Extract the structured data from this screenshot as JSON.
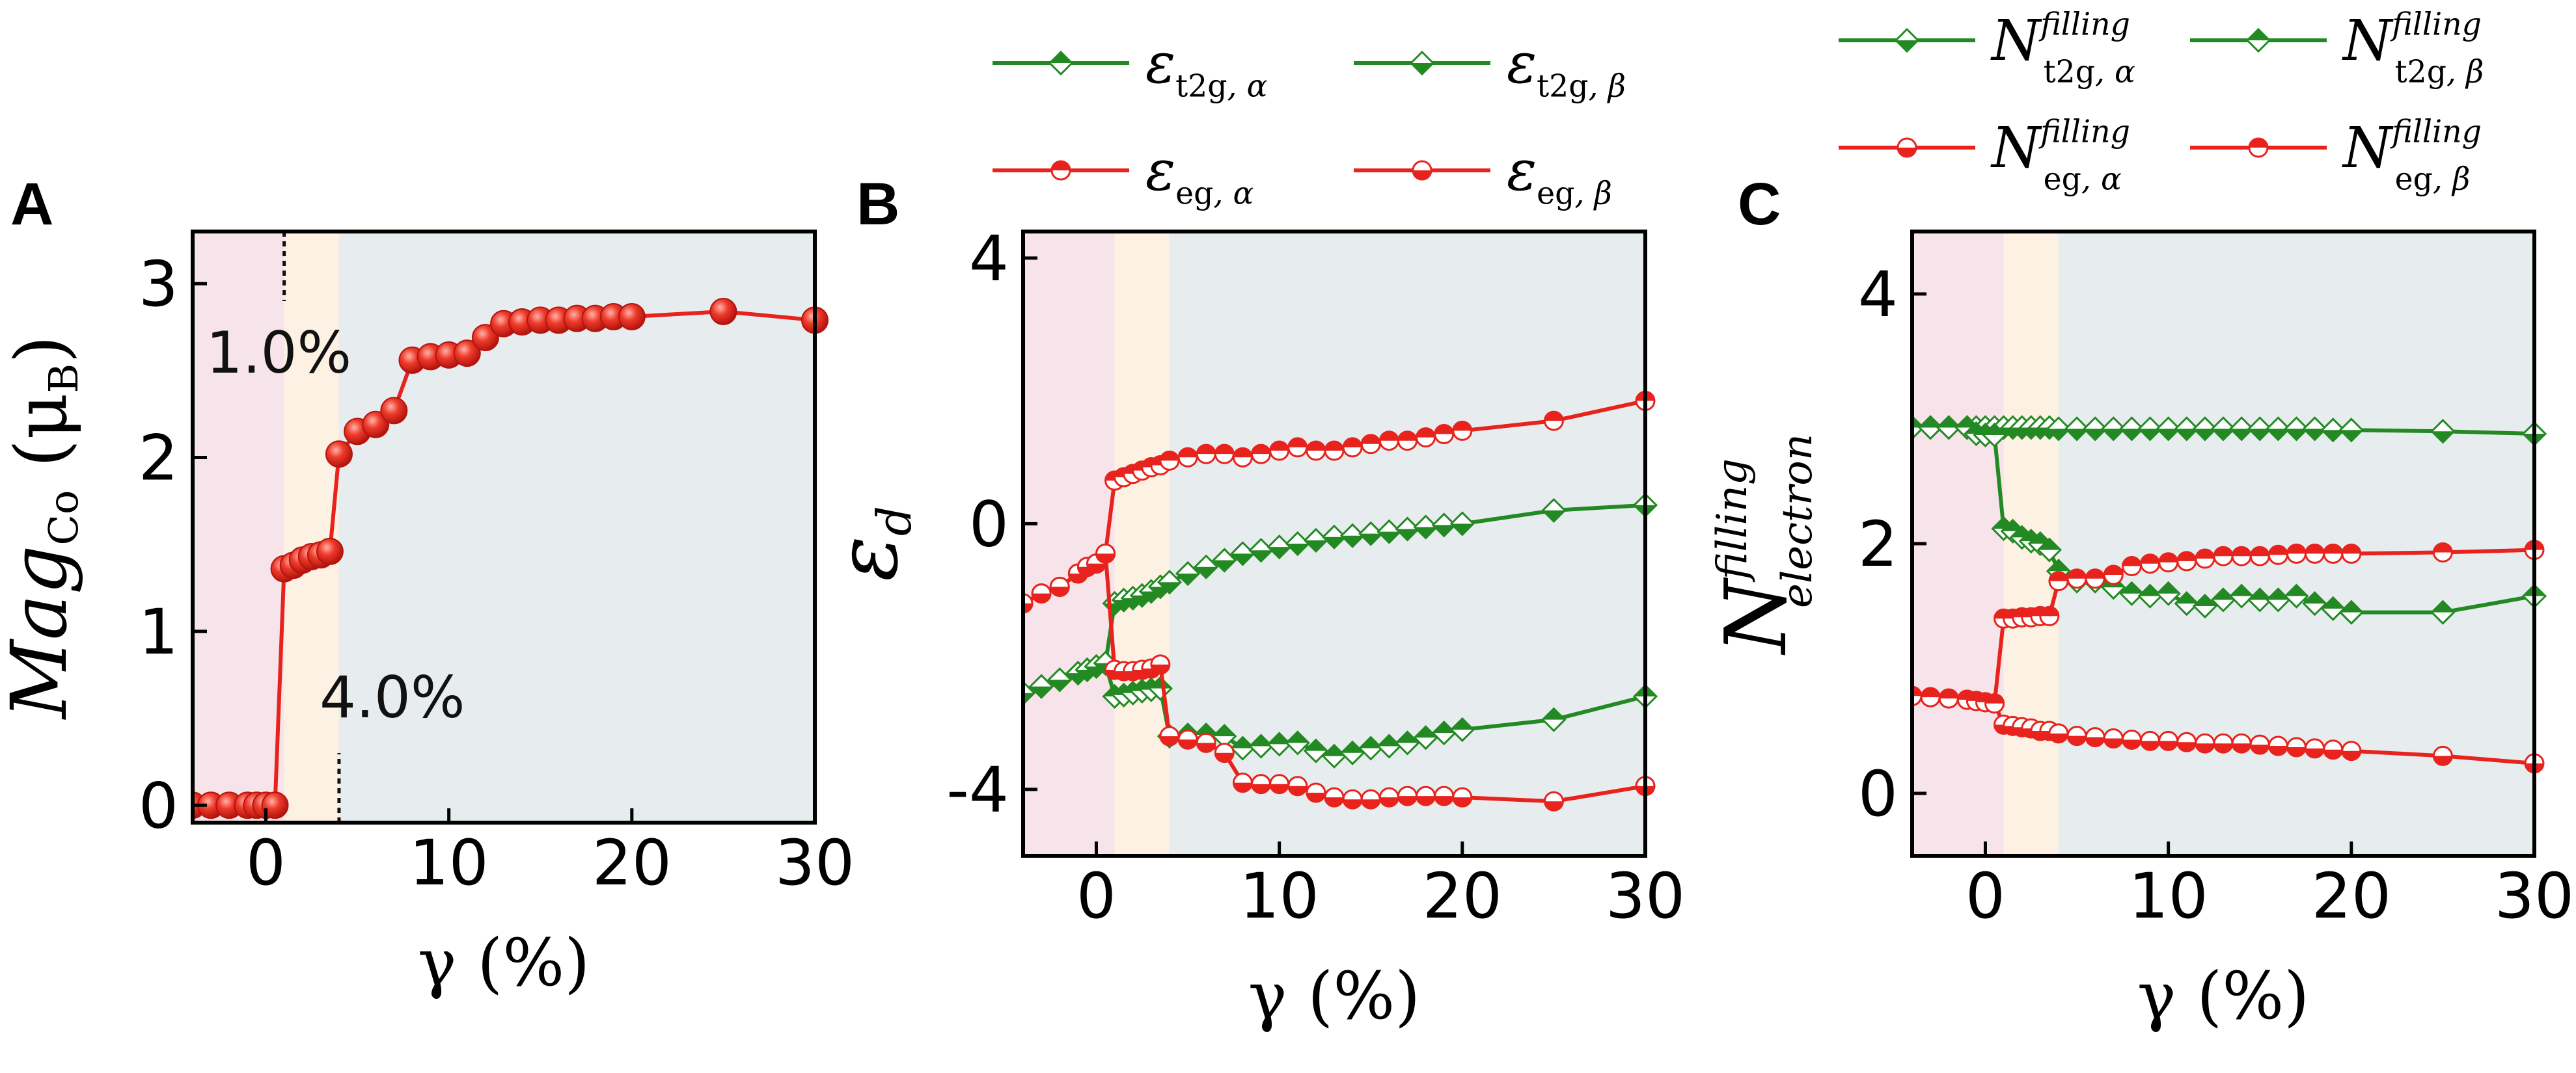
{
  "chart_data": [
    {
      "panel": "A",
      "type": "line",
      "xlabel": "γ (%)",
      "ylabel": {
        "main": "Mag",
        "sub": "Co",
        "unit_open": "(μ",
        "unit_sub": "B",
        "unit_close": ")"
      },
      "xlim": [
        -4,
        30
      ],
      "ylim": [
        -0.1,
        3.3
      ],
      "xticks": [
        0,
        10,
        20,
        30
      ],
      "yticks": [
        0,
        1,
        2,
        3
      ],
      "regions": [
        {
          "from": -4,
          "to": 1,
          "color": "#f6e4ea"
        },
        {
          "from": 1,
          "to": 4,
          "color": "#fcf1e2"
        },
        {
          "from": 4,
          "to": 30,
          "color": "#e7edef"
        }
      ],
      "annotations": [
        {
          "text": "1.0%",
          "x": 1.0,
          "y_from": 3.3,
          "y_to": 2.9
        },
        {
          "text": "4.0%",
          "x": 4.0,
          "y_from": -0.1,
          "y_to": 0.3
        }
      ],
      "series": [
        {
          "name": "Mag Co",
          "color": "#e8231d",
          "marker": "sphere",
          "x": [
            -4,
            -3,
            -2,
            -1,
            -0.5,
            0,
            0.5,
            1,
            1.5,
            2,
            2.5,
            3,
            3.5,
            4,
            5,
            6,
            7,
            8,
            9,
            10,
            11,
            12,
            13,
            14,
            15,
            16,
            17,
            18,
            19,
            20,
            25,
            30
          ],
          "y": [
            0,
            0,
            0,
            0,
            0,
            0,
            0,
            1.36,
            1.38,
            1.41,
            1.43,
            1.44,
            1.46,
            2.02,
            2.15,
            2.19,
            2.27,
            2.56,
            2.58,
            2.59,
            2.6,
            2.69,
            2.77,
            2.78,
            2.79,
            2.79,
            2.8,
            2.8,
            2.81,
            2.81,
            2.84,
            2.79
          ]
        }
      ]
    },
    {
      "panel": "B",
      "type": "line",
      "xlabel": "γ (%)",
      "ylabel": {
        "main": "ε",
        "sub": "d"
      },
      "xlim": [
        -4,
        30
      ],
      "ylim": [
        -5,
        4.4
      ],
      "xticks": [
        0,
        10,
        20,
        30
      ],
      "yticks": [
        -4,
        0,
        4
      ],
      "ytick_labels": [
        "-4",
        "0",
        "4"
      ],
      "regions": [
        {
          "from": -4,
          "to": 1,
          "color": "#f6e4ea"
        },
        {
          "from": 1,
          "to": 4,
          "color": "#fcf1e2"
        },
        {
          "from": 4,
          "to": 30,
          "color": "#e7edef"
        }
      ],
      "series": [
        {
          "name": "ε t2g, α",
          "color": "#238a23",
          "marker": "diamond-top",
          "x": [
            -4,
            -3,
            -2,
            -1,
            -0.5,
            0,
            0.5,
            1,
            1.5,
            2,
            2.5,
            3,
            3.5,
            4,
            5,
            6,
            7,
            8,
            9,
            10,
            11,
            12,
            13,
            14,
            15,
            16,
            17,
            18,
            19,
            20,
            25,
            30
          ],
          "y": [
            -2.55,
            -2.45,
            -2.35,
            -2.25,
            -2.2,
            -2.15,
            -2.1,
            -2.6,
            -2.58,
            -2.55,
            -2.52,
            -2.5,
            -2.48,
            -3.2,
            -3.18,
            -3.18,
            -3.2,
            -3.38,
            -3.35,
            -3.32,
            -3.3,
            -3.42,
            -3.5,
            -3.45,
            -3.38,
            -3.35,
            -3.3,
            -3.22,
            -3.15,
            -3.1,
            -2.95,
            -2.6
          ]
        },
        {
          "name": "ε t2g, β",
          "color": "#238a23",
          "marker": "diamond-bottom",
          "x": [
            -4,
            -3,
            -2,
            -1,
            -0.5,
            0,
            0.5,
            1,
            1.5,
            2,
            2.5,
            3,
            3.5,
            4,
            5,
            6,
            7,
            8,
            9,
            10,
            11,
            12,
            13,
            14,
            15,
            16,
            17,
            18,
            19,
            20,
            25,
            30
          ],
          "y": [
            -2.55,
            -2.45,
            -2.35,
            -2.25,
            -2.2,
            -2.15,
            -2.1,
            -1.2,
            -1.15,
            -1.12,
            -1.08,
            -1.02,
            -0.95,
            -0.88,
            -0.75,
            -0.65,
            -0.55,
            -0.45,
            -0.4,
            -0.35,
            -0.3,
            -0.25,
            -0.2,
            -0.18,
            -0.15,
            -0.12,
            -0.08,
            -0.05,
            -0.02,
            0.0,
            0.2,
            0.28
          ]
        },
        {
          "name": "ε eg, α",
          "color": "#e8231d",
          "marker": "circle-top",
          "x": [
            -4,
            -3,
            -2,
            -1,
            -0.5,
            0,
            0.5,
            1,
            1.5,
            2,
            2.5,
            3,
            3.5,
            4,
            5,
            6,
            7,
            8,
            9,
            10,
            11,
            12,
            13,
            14,
            15,
            16,
            17,
            18,
            19,
            20,
            25,
            30
          ],
          "y": [
            -1.2,
            -1.05,
            -0.95,
            -0.75,
            -0.65,
            -0.6,
            -0.45,
            0.65,
            0.7,
            0.75,
            0.8,
            0.85,
            0.88,
            0.95,
            1.0,
            1.05,
            1.05,
            1.0,
            1.05,
            1.1,
            1.15,
            1.1,
            1.1,
            1.15,
            1.2,
            1.25,
            1.25,
            1.3,
            1.35,
            1.4,
            1.55,
            1.85
          ]
        },
        {
          "name": "ε eg, β",
          "color": "#e8231d",
          "marker": "circle-bottom",
          "x": [
            -4,
            -3,
            -2,
            -1,
            -0.5,
            0,
            0.5,
            1,
            1.5,
            2,
            2.5,
            3,
            3.5,
            4,
            5,
            6,
            7,
            8,
            9,
            10,
            11,
            12,
            13,
            14,
            15,
            16,
            17,
            18,
            19,
            20,
            25,
            30
          ],
          "y": [
            -1.2,
            -1.05,
            -0.95,
            -0.75,
            -0.65,
            -0.6,
            -0.45,
            -2.2,
            -2.22,
            -2.22,
            -2.2,
            -2.18,
            -2.12,
            -3.2,
            -3.25,
            -3.3,
            -3.45,
            -3.9,
            -3.92,
            -3.92,
            -3.95,
            -4.05,
            -4.12,
            -4.15,
            -4.15,
            -4.12,
            -4.1,
            -4.1,
            -4.1,
            -4.12,
            -4.18,
            -3.95
          ]
        }
      ]
    },
    {
      "panel": "C",
      "type": "line",
      "xlabel": "γ (%)",
      "ylabel": {
        "main": "N",
        "sub": "electron",
        "sup": "filling"
      },
      "xlim": [
        -4,
        30
      ],
      "ylim": [
        -0.5,
        4.5
      ],
      "xticks": [
        0,
        10,
        20,
        30
      ],
      "yticks": [
        0,
        2,
        4
      ],
      "regions": [
        {
          "from": -4,
          "to": 1,
          "color": "#f6e4ea"
        },
        {
          "from": 1,
          "to": 4,
          "color": "#fcf1e2"
        },
        {
          "from": 4,
          "to": 30,
          "color": "#e7edef"
        }
      ],
      "series": [
        {
          "name": "N filling t2g, α",
          "color": "#238a23",
          "marker": "diamond-bottom",
          "x": [
            -4,
            -3,
            -2,
            -1,
            -0.5,
            0,
            0.5,
            1,
            1.5,
            2,
            2.5,
            3,
            3.5,
            4,
            5,
            6,
            7,
            8,
            9,
            10,
            11,
            12,
            13,
            14,
            15,
            16,
            17,
            18,
            19,
            20,
            25,
            30
          ],
          "y": [
            2.93,
            2.93,
            2.93,
            2.93,
            2.93,
            2.93,
            2.93,
            2.93,
            2.93,
            2.93,
            2.93,
            2.93,
            2.93,
            2.92,
            2.92,
            2.92,
            2.92,
            2.92,
            2.92,
            2.92,
            2.92,
            2.92,
            2.92,
            2.92,
            2.92,
            2.92,
            2.92,
            2.92,
            2.91,
            2.91,
            2.9,
            2.88
          ]
        },
        {
          "name": "N filling t2g, β",
          "color": "#238a23",
          "marker": "diamond-top",
          "x": [
            -4,
            -3,
            -2,
            -1,
            -0.5,
            0,
            0.5,
            1,
            1.5,
            2,
            2.5,
            3,
            3.5,
            4,
            5,
            6,
            7,
            8,
            9,
            10,
            11,
            12,
            13,
            14,
            15,
            16,
            17,
            18,
            19,
            20,
            25,
            30
          ],
          "y": [
            2.93,
            2.93,
            2.93,
            2.93,
            2.88,
            2.87,
            2.87,
            2.12,
            2.1,
            2.05,
            2.02,
            2.0,
            1.95,
            1.78,
            1.7,
            1.7,
            1.65,
            1.6,
            1.58,
            1.6,
            1.52,
            1.5,
            1.55,
            1.58,
            1.55,
            1.55,
            1.58,
            1.52,
            1.48,
            1.45,
            1.45,
            1.58
          ]
        },
        {
          "name": "N filling eg, α",
          "color": "#e8231d",
          "marker": "circle-bottom",
          "x": [
            -4,
            -3,
            -2,
            -1,
            -0.5,
            0,
            0.5,
            1,
            1.5,
            2,
            2.5,
            3,
            3.5,
            4,
            5,
            6,
            7,
            8,
            9,
            10,
            11,
            12,
            13,
            14,
            15,
            16,
            17,
            18,
            19,
            20,
            25,
            30
          ],
          "y": [
            0.78,
            0.77,
            0.76,
            0.75,
            0.74,
            0.73,
            0.72,
            0.55,
            0.54,
            0.53,
            0.52,
            0.5,
            0.5,
            0.48,
            0.46,
            0.45,
            0.44,
            0.43,
            0.42,
            0.42,
            0.41,
            0.4,
            0.4,
            0.4,
            0.39,
            0.38,
            0.37,
            0.36,
            0.35,
            0.34,
            0.3,
            0.24
          ]
        },
        {
          "name": "N filling eg, β",
          "color": "#e8231d",
          "marker": "circle-top",
          "x": [
            -4,
            -3,
            -2,
            -1,
            -0.5,
            0,
            0.5,
            1,
            1.5,
            2,
            2.5,
            3,
            3.5,
            4,
            5,
            6,
            7,
            8,
            9,
            10,
            11,
            12,
            13,
            14,
            15,
            16,
            17,
            18,
            19,
            20,
            25,
            30
          ],
          "y": [
            0.78,
            0.77,
            0.76,
            0.75,
            0.74,
            0.73,
            0.72,
            1.4,
            1.4,
            1.41,
            1.41,
            1.42,
            1.42,
            1.7,
            1.72,
            1.72,
            1.75,
            1.82,
            1.84,
            1.85,
            1.86,
            1.88,
            1.9,
            1.9,
            1.9,
            1.91,
            1.92,
            1.92,
            1.92,
            1.92,
            1.93,
            1.95
          ]
        }
      ]
    }
  ],
  "panel_letters": [
    "A",
    "B",
    "C"
  ],
  "legend_B": [
    {
      "series": "ε t2g, α",
      "symbol": "ε",
      "sub": "t2g",
      "sub2": ", α",
      "marker": "diamond-top",
      "color": "#238a23"
    },
    {
      "series": "ε t2g, β",
      "symbol": "ε",
      "sub": "t2g",
      "sub2": ", β",
      "marker": "diamond-bottom",
      "color": "#238a23"
    },
    {
      "series": "ε eg, α",
      "symbol": "ε",
      "sub": "eg",
      "sub2": ", α",
      "marker": "circle-top",
      "color": "#e8231d"
    },
    {
      "series": "ε eg, β",
      "symbol": "ε",
      "sub": "eg",
      "sub2": ", β",
      "marker": "circle-bottom",
      "color": "#e8231d"
    }
  ],
  "legend_C": [
    {
      "series": "N filling t2g, α",
      "symbol": "N",
      "sup": "filling",
      "sub": "t2g",
      "sub2": ", α",
      "marker": "diamond-bottom",
      "color": "#238a23"
    },
    {
      "series": "N filling t2g, β",
      "symbol": "N",
      "sup": "filling",
      "sub": "t2g",
      "sub2": ", β",
      "marker": "diamond-top",
      "color": "#238a23"
    },
    {
      "series": "N filling eg, α",
      "symbol": "N",
      "sup": "filling",
      "sub": "eg",
      "sub2": ", α",
      "marker": "circle-bottom",
      "color": "#e8231d"
    },
    {
      "series": "N filling eg, β",
      "symbol": "N",
      "sup": "filling",
      "sub": "eg",
      "sub2": ", β",
      "marker": "circle-top",
      "color": "#e8231d"
    }
  ]
}
